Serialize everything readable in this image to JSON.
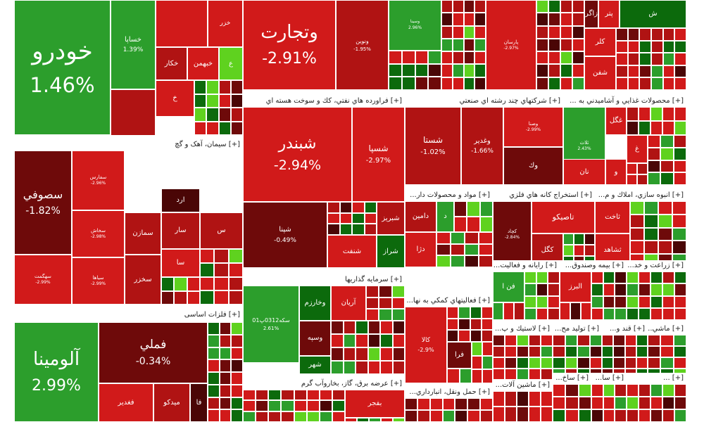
{
  "colors": {
    "neg1": "#d11a1a",
    "neg2": "#b01313",
    "neg3": "#6e0a0a",
    "pos1": "#2c9e2c",
    "pos2": "#5fd21f",
    "pos3": "#0c6a0c",
    "dark": "#4a0606"
  },
  "sectors": [
    {
      "id": "s1",
      "title": "",
      "tiles": [
        {
          "n": "خودرو",
          "p": "1.46%",
          "c": "pos1",
          "big": true
        },
        {
          "n": "خساپا",
          "p": "1.39%",
          "c": "pos1"
        },
        {
          "n": "",
          "p": "",
          "c": "neg1"
        },
        {
          "n": "خزر",
          "p": "",
          "c": "neg1"
        },
        {
          "n": "خکار",
          "p": "",
          "c": "neg2"
        },
        {
          "n": "خبهمن",
          "p": "",
          "c": "neg1"
        },
        {
          "n": "ع",
          "p": "",
          "c": "pos2"
        },
        {
          "n": "",
          "p": "",
          "c": "neg2"
        },
        {
          "n": "خ",
          "p": "",
          "c": "neg1"
        }
      ]
    },
    {
      "id": "s2",
      "title": "[+] سیمان، آهک و گچ",
      "tiles": [
        {
          "n": "سصوفي",
          "p": "-1.82%",
          "c": "neg3",
          "big": true
        },
        {
          "n": "سهگمت",
          "p": "-2.99%",
          "c": "neg1"
        },
        {
          "n": "سفارس",
          "p": "-2.96%",
          "c": "neg1"
        },
        {
          "n": "سخاش",
          "p": "-2.98%",
          "c": "neg1"
        },
        {
          "n": "سیاها",
          "p": "-2.99%",
          "c": "neg1"
        },
        {
          "n": "سمازن",
          "p": "",
          "c": "neg2"
        },
        {
          "n": "سخزر",
          "p": "",
          "c": "neg2"
        },
        {
          "n": "سار",
          "p": "",
          "c": "neg2"
        },
        {
          "n": "سا",
          "p": "",
          "c": "neg1"
        },
        {
          "n": "س",
          "p": "",
          "c": "neg2"
        },
        {
          "n": "ارد",
          "p": "",
          "c": "dark"
        }
      ]
    },
    {
      "id": "s3",
      "title": "[+] فلزات اساسی",
      "tiles": [
        {
          "n": "آلومينا",
          "p": "2.99%",
          "c": "pos1",
          "big": true
        },
        {
          "n": "فملي",
          "p": "-0.34%",
          "c": "neg3",
          "big": true
        },
        {
          "n": "فغدير",
          "p": "",
          "c": "neg1"
        },
        {
          "n": "ميدكو",
          "p": "",
          "c": "neg2"
        },
        {
          "n": "فا",
          "p": "",
          "c": "dark"
        }
      ]
    },
    {
      "id": "s4",
      "title": "",
      "tiles": [
        {
          "n": "وتجارت",
          "p": "-2.91%",
          "c": "neg1",
          "big": true
        },
        {
          "n": "ونوين",
          "p": "-1.95%",
          "c": "neg2"
        },
        {
          "n": "وسينا",
          "p": "2.96%",
          "c": "pos1"
        },
        {
          "n": "پارسان",
          "p": "-2.97%",
          "c": "neg1"
        },
        {
          "n": "زاگر",
          "p": "",
          "c": "neg3"
        },
        {
          "n": "پتر",
          "p": "",
          "c": "neg1"
        },
        {
          "n": "ش",
          "p": "",
          "c": "pos3"
        },
        {
          "n": "كلر",
          "p": "",
          "c": "neg1"
        },
        {
          "n": "شفن",
          "p": "",
          "c": "neg1"
        }
      ]
    },
    {
      "id": "s5",
      "title": "[+] فراورده هاي نفتي، كك و سوخت هسته اي",
      "tiles": [
        {
          "n": "شبندر",
          "p": "-2.94%",
          "c": "neg1",
          "big": true
        },
        {
          "n": "شسپا",
          "p": "-2.97%",
          "c": "neg1"
        },
        {
          "n": "شپنا",
          "p": "-0.49%",
          "c": "neg3"
        },
        {
          "n": "شبريز",
          "p": "",
          "c": "neg2"
        },
        {
          "n": "شراز",
          "p": "",
          "c": "pos3"
        },
        {
          "n": "شنفت",
          "p": "",
          "c": "neg1"
        }
      ]
    },
    {
      "id": "s6",
      "title": "[+] شركتهاي چند رشته اي صنعتي",
      "tiles": [
        {
          "n": "شستا",
          "p": "-1.02%",
          "c": "neg2"
        },
        {
          "n": "وغدير",
          "p": "-1.66%",
          "c": "neg2"
        },
        {
          "n": "وصنا",
          "p": "-2.99%",
          "c": "neg1"
        },
        {
          "n": "وك",
          "p": "",
          "c": "neg3"
        }
      ]
    },
    {
      "id": "s7",
      "title": "[+] محصولات غذايي و آشاميدني به ...",
      "tiles": [
        {
          "n": "غگل",
          "p": "",
          "c": "neg1"
        },
        {
          "n": "ثلاث",
          "p": "2.43%",
          "c": "pos1"
        },
        {
          "n": "نان",
          "p": "",
          "c": "neg1"
        },
        {
          "n": "غ",
          "p": "",
          "c": "neg1"
        },
        {
          "n": "و",
          "p": "",
          "c": "neg1"
        }
      ]
    },
    {
      "id": "s8",
      "title": "[+] مواد و محصولات دار...",
      "tiles": [
        {
          "n": "دامين",
          "p": "",
          "c": "neg2"
        },
        {
          "n": "د",
          "p": "",
          "c": "pos1"
        },
        {
          "n": "دژا",
          "p": "",
          "c": "neg1"
        }
      ]
    },
    {
      "id": "s9",
      "title": "[+] استخراج كانه هاي فلزي",
      "tiles": [
        {
          "n": "تاصيكو",
          "p": "",
          "c": "neg1"
        },
        {
          "n": "كگل",
          "p": "",
          "c": "neg2"
        },
        {
          "n": "كچاد",
          "p": "-2.84%",
          "c": "neg3"
        }
      ]
    },
    {
      "id": "s10",
      "title": "[+] انبوه سازي، املاك و م...",
      "tiles": [
        {
          "n": "ثاخت",
          "p": "",
          "c": "neg1"
        },
        {
          "n": "ثشاهد",
          "p": "",
          "c": "neg1"
        }
      ]
    },
    {
      "id": "s11",
      "title": "[+] سرمايه گذاريها",
      "tiles": [
        {
          "n": "سكه0312پ01",
          "p": "2.61%",
          "c": "pos1"
        },
        {
          "n": "وخارزم",
          "p": "",
          "c": "pos3"
        },
        {
          "n": "آريان",
          "p": "",
          "c": "neg1"
        },
        {
          "n": "وسپه",
          "p": "",
          "c": "neg3"
        },
        {
          "n": "شهر",
          "p": "",
          "c": "pos3"
        }
      ]
    },
    {
      "id": "s12",
      "title": "[+] رايانه و فعاليت...",
      "tiles": [
        {
          "n": "فن ا",
          "p": "",
          "c": "pos1"
        }
      ]
    },
    {
      "id": "s13",
      "title": "[+] بيمه وصندوق...",
      "tiles": [
        {
          "n": "البرز",
          "p": "",
          "c": "neg1"
        }
      ]
    },
    {
      "id": "s14",
      "title": "[+] زراعت و خد...",
      "tiles": []
    },
    {
      "id": "s15",
      "title": "[+] فعاليتهاي كمكي به نها...",
      "tiles": [
        {
          "n": "كالا",
          "p": "-2.9%",
          "c": "neg1"
        },
        {
          "n": "فرا",
          "p": "",
          "c": "neg3"
        }
      ]
    },
    {
      "id": "s16",
      "title": "[+] لاستيك و پ...",
      "tiles": []
    },
    {
      "id": "s17",
      "title": "[+] توليد مح...",
      "tiles": []
    },
    {
      "id": "s18",
      "title": "[+] قند و...",
      "tiles": []
    },
    {
      "id": "s19",
      "title": "[+] ماشي...",
      "tiles": []
    },
    {
      "id": "s20",
      "title": "[+] عرضه برق، گاز، بخاروآب گرم",
      "tiles": [
        {
          "n": "بفجر",
          "p": "",
          "c": "neg1"
        }
      ]
    },
    {
      "id": "s21",
      "title": "[+] حمل ونقل، انبارداري...",
      "tiles": []
    },
    {
      "id": "s22",
      "title": "[+] ماشين آلات...",
      "tiles": []
    },
    {
      "id": "s23",
      "title": "[+] ساخ...",
      "tiles": []
    },
    {
      "id": "s24",
      "title": "[+] سا...",
      "tiles": []
    },
    {
      "id": "s25",
      "title": "[+] ...",
      "tiles": []
    }
  ]
}
